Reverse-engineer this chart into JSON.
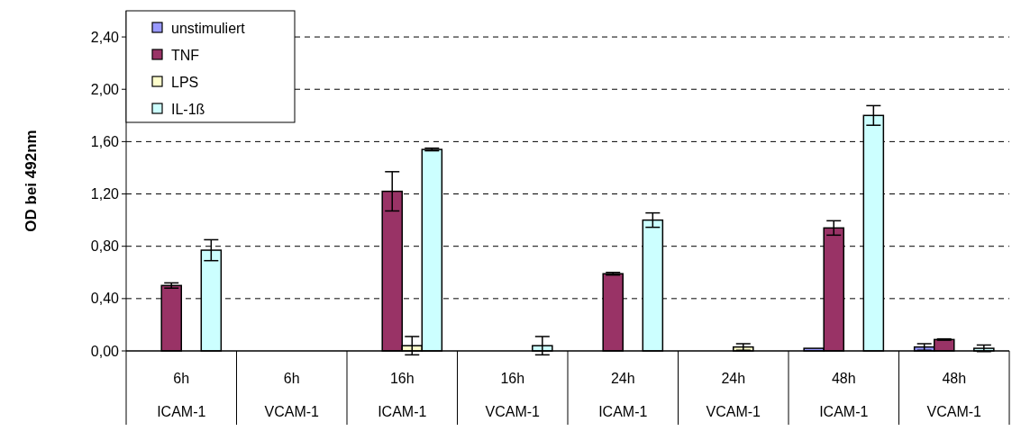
{
  "chart_data": {
    "type": "bar",
    "ylabel": "OD bei 492nm",
    "categories": [
      "6h\nICAM-1",
      "6h\nVCAM-1",
      "16h\nICAM-1",
      "16h\nVCAM-1",
      "24h\nICAM-1",
      "24h\nVCAM-1",
      "48h\nICAM-1",
      "48h\nVCAM-1"
    ],
    "series": [
      {
        "name": "unstimuliert",
        "color": "#9999ff",
        "values": [
          0,
          null,
          0,
          0,
          0,
          0,
          0.02,
          0.03
        ],
        "errors": [
          null,
          null,
          null,
          null,
          null,
          null,
          null,
          0.025
        ]
      },
      {
        "name": "TNF",
        "color": "#993366",
        "values": [
          0.5,
          null,
          1.22,
          0,
          0.59,
          0,
          0.94,
          0.087
        ],
        "errors": [
          0.02,
          null,
          0.15,
          null,
          0.01,
          null,
          0.055,
          0.005
        ]
      },
      {
        "name": "LPS",
        "color": "#ffffcc",
        "values": [
          0,
          0,
          0.04,
          0,
          0,
          0.03,
          0,
          0
        ],
        "errors": [
          null,
          null,
          0.07,
          null,
          null,
          0.025,
          null,
          null
        ]
      },
      {
        "name": "IL-1ß",
        "color": "#ccffff",
        "values": [
          0.77,
          null,
          1.54,
          0.04,
          1.0,
          0,
          1.8,
          0.02
        ],
        "errors": [
          0.08,
          null,
          0.01,
          0.07,
          0.055,
          null,
          0.075,
          0.025
        ]
      }
    ],
    "ylim": [
      0,
      2.6
    ],
    "yticks": [
      {
        "value": 0,
        "label": "0,00"
      },
      {
        "value": 0.4,
        "label": "0,40"
      },
      {
        "value": 0.8,
        "label": "0,80"
      },
      {
        "value": 1.2,
        "label": "1,20"
      },
      {
        "value": 1.6,
        "label": "1,60"
      },
      {
        "value": 2.0,
        "label": "2,00"
      },
      {
        "value": 2.4,
        "label": "2,40"
      }
    ],
    "grid": "y",
    "legend": "top left"
  }
}
